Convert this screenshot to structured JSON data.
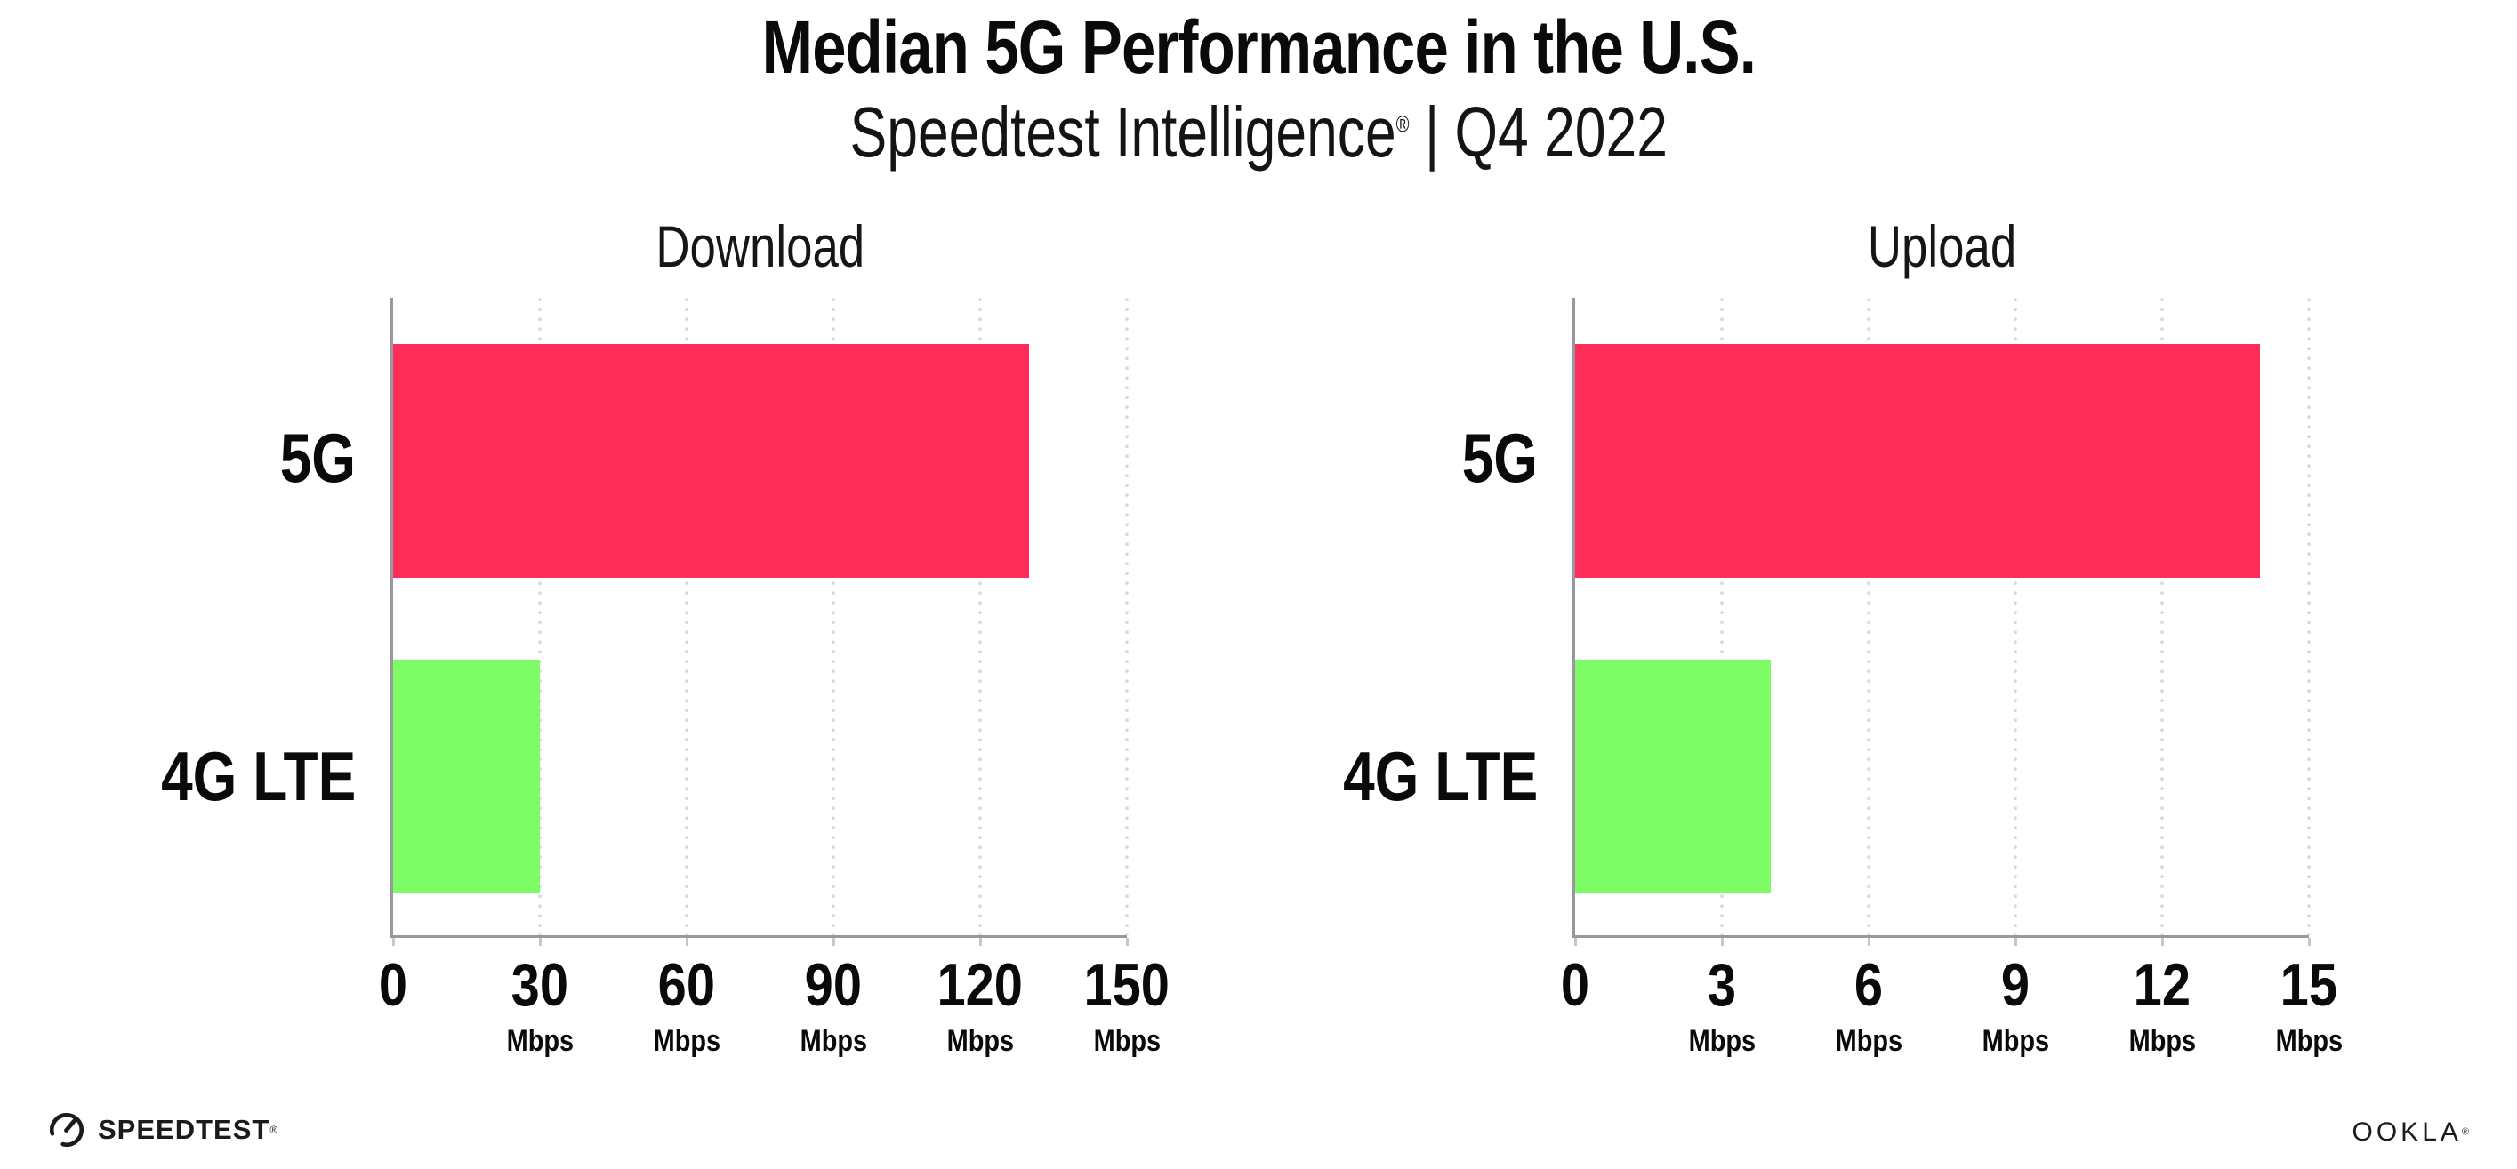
{
  "header": {
    "title": "Median 5G Performance in the U.S.",
    "subtitle_brand": "Speedtest Intelligence",
    "subtitle_reg": "®",
    "subtitle_period": " | Q4 2022"
  },
  "footer": {
    "speedtest_label": "SPEEDTEST",
    "speedtest_reg": "®",
    "ookla_label": "OOKLA",
    "ookla_reg": "®"
  },
  "colors": {
    "bar_5g": "#FF2D5A",
    "bar_4g_lte": "#7EFC65",
    "axis": "#98989e",
    "gridline_dots": "#d8d8de",
    "text": "#0d0d0d"
  },
  "chart_data": [
    {
      "type": "bar",
      "orientation": "horizontal",
      "title": "Download",
      "categories": [
        "5G",
        "4G LTE"
      ],
      "values": [
        130,
        30
      ],
      "unit": "Mbps",
      "xlim": [
        0,
        150
      ],
      "xticks": [
        0,
        30,
        60,
        90,
        120,
        150
      ],
      "tick_unit": "Mbps",
      "grid": "vertical-dotted",
      "legend": "none",
      "bar_colors": [
        "#FF2D5A",
        "#7EFC65"
      ]
    },
    {
      "type": "bar",
      "orientation": "horizontal",
      "title": "Upload",
      "categories": [
        "5G",
        "4G LTE"
      ],
      "values": [
        14,
        4
      ],
      "unit": "Mbps",
      "xlim": [
        0,
        15
      ],
      "xticks": [
        0,
        3,
        6,
        9,
        12,
        15
      ],
      "tick_unit": "Mbps",
      "grid": "vertical-dotted",
      "legend": "none",
      "bar_colors": [
        "#FF2D5A",
        "#7EFC65"
      ]
    }
  ]
}
